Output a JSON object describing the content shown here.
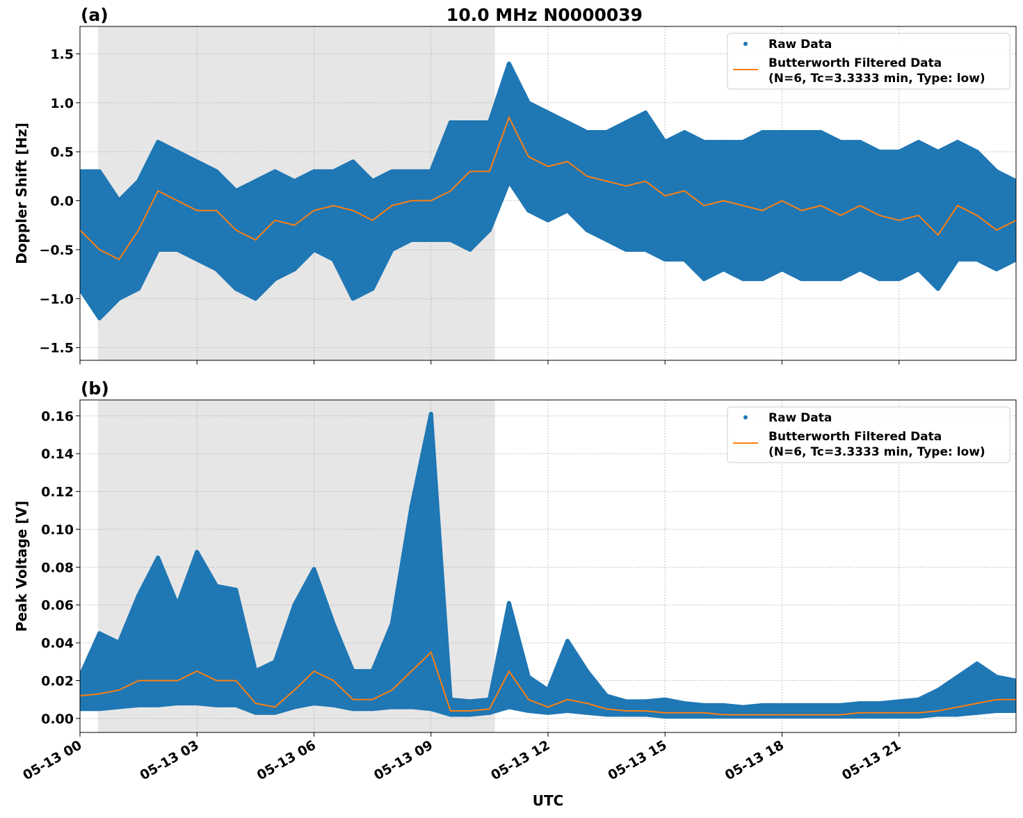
{
  "title": "10.0 MHz N0000039",
  "colors": {
    "raw": "#1f77b4",
    "filtered": "#ff7f0e",
    "shade": "#e6e6e6",
    "grid": "#b0b0b0"
  },
  "chart_data": [
    {
      "type": "scatter",
      "panel_label": "(a)",
      "title": "10.0 MHz N0000039",
      "xlabel": "",
      "ylabel": "Doppler Shift [Hz]",
      "x_unit": "hours UTC on 05-13",
      "xlim": [
        0,
        24
      ],
      "ylim": [
        -1.63,
        1.78
      ],
      "xticks": [
        0,
        3,
        6,
        9,
        12,
        15,
        18,
        21
      ],
      "xtick_labels": [
        "05-13 00",
        "05-13 03",
        "05-13 06",
        "05-13 09",
        "05-13 12",
        "05-13 15",
        "05-13 18",
        "05-13 21"
      ],
      "yticks": [
        -1.5,
        -1.0,
        -0.5,
        0.0,
        0.5,
        1.0,
        1.5
      ],
      "ytick_labels": [
        "−1.5",
        "−1.0",
        "−0.5",
        "0.0",
        "0.5",
        "1.0",
        "1.5"
      ],
      "grid": true,
      "shaded_span": [
        0.46,
        10.64
      ],
      "legend": {
        "placement": "top-right",
        "entries": [
          "Raw Data",
          "Butterworth Filtered Data",
          "(N=6, Tc=3.3333 min, Type: low)"
        ]
      },
      "x": [
        0,
        0.5,
        1,
        1.5,
        2,
        2.5,
        3,
        3.5,
        4,
        4.5,
        5,
        5.5,
        6,
        6.5,
        7,
        7.5,
        8,
        8.5,
        9,
        9.5,
        10,
        10.5,
        11,
        11.5,
        12,
        12.5,
        13,
        13.5,
        14,
        14.5,
        15,
        15.5,
        16,
        16.5,
        17,
        17.5,
        18,
        18.5,
        19,
        19.5,
        20,
        20.5,
        21,
        21.5,
        22,
        22.5,
        23,
        23.5,
        24
      ],
      "series": [
        {
          "name": "Butterworth Filtered Data",
          "kind": "line",
          "values": [
            -0.3,
            -0.5,
            -0.6,
            -0.3,
            0.1,
            0.0,
            -0.1,
            -0.1,
            -0.3,
            -0.4,
            -0.2,
            -0.25,
            -0.1,
            -0.05,
            -0.1,
            -0.2,
            -0.05,
            0.0,
            0.0,
            0.1,
            0.3,
            0.3,
            0.85,
            0.45,
            0.35,
            0.4,
            0.25,
            0.2,
            0.15,
            0.2,
            0.05,
            0.1,
            -0.05,
            0.0,
            -0.05,
            -0.1,
            0.0,
            -0.1,
            -0.05,
            -0.15,
            -0.05,
            -0.15,
            -0.2,
            -0.15,
            -0.35,
            -0.05,
            -0.15,
            -0.3,
            -0.2
          ]
        },
        {
          "name": "Raw Data",
          "kind": "scatter-envelope",
          "lower": [
            -0.9,
            -1.2,
            -1.0,
            -0.9,
            -0.5,
            -0.5,
            -0.6,
            -0.7,
            -0.9,
            -1.0,
            -0.8,
            -0.7,
            -0.5,
            -0.6,
            -1.0,
            -0.9,
            -0.5,
            -0.4,
            -0.4,
            -0.4,
            -0.5,
            -0.3,
            0.2,
            -0.1,
            -0.2,
            -0.1,
            -0.3,
            -0.4,
            -0.5,
            -0.5,
            -0.6,
            -0.6,
            -0.8,
            -0.7,
            -0.8,
            -0.8,
            -0.7,
            -0.8,
            -0.8,
            -0.8,
            -0.7,
            -0.8,
            -0.8,
            -0.7,
            -0.9,
            -0.6,
            -0.6,
            -0.7,
            -0.6
          ],
          "upper": [
            0.3,
            0.3,
            0.0,
            0.2,
            0.6,
            0.5,
            0.4,
            0.3,
            0.1,
            0.2,
            0.3,
            0.2,
            0.3,
            0.3,
            0.4,
            0.2,
            0.3,
            0.3,
            0.3,
            0.8,
            0.8,
            0.8,
            1.4,
            1.0,
            0.9,
            0.8,
            0.7,
            0.7,
            0.8,
            0.9,
            0.6,
            0.7,
            0.6,
            0.6,
            0.6,
            0.7,
            0.7,
            0.7,
            0.7,
            0.6,
            0.6,
            0.5,
            0.5,
            0.6,
            0.5,
            0.6,
            0.5,
            0.3,
            0.2
          ]
        }
      ]
    },
    {
      "type": "scatter",
      "panel_label": "(b)",
      "xlabel": "UTC",
      "ylabel": "Peak Voltage [V]",
      "x_unit": "hours UTC on 05-13",
      "xlim": [
        0,
        24
      ],
      "ylim": [
        -0.0074,
        0.1684
      ],
      "xticks": [
        0,
        3,
        6,
        9,
        12,
        15,
        18,
        21
      ],
      "xtick_labels": [
        "05-13 00",
        "05-13 03",
        "05-13 06",
        "05-13 09",
        "05-13 12",
        "05-13 15",
        "05-13 18",
        "05-13 21"
      ],
      "yticks": [
        0.0,
        0.02,
        0.04,
        0.06,
        0.08,
        0.1,
        0.12,
        0.14,
        0.16
      ],
      "ytick_labels": [
        "0.00",
        "0.02",
        "0.04",
        "0.06",
        "0.08",
        "0.10",
        "0.12",
        "0.14",
        "0.16"
      ],
      "grid": true,
      "shaded_span": [
        0.46,
        10.64
      ],
      "legend": {
        "placement": "top-right",
        "entries": [
          "Raw Data",
          "Butterworth Filtered Data",
          "(N=6, Tc=3.3333 min, Type: low)"
        ]
      },
      "x": [
        0,
        0.5,
        1,
        1.5,
        2,
        2.5,
        3,
        3.5,
        4,
        4.5,
        5,
        5.5,
        6,
        6.5,
        7,
        7.5,
        8,
        8.5,
        9,
        9.5,
        10,
        10.5,
        11,
        11.5,
        12,
        12.5,
        13,
        13.5,
        14,
        14.5,
        15,
        15.5,
        16,
        16.5,
        17,
        17.5,
        18,
        18.5,
        19,
        19.5,
        20,
        20.5,
        21,
        21.5,
        22,
        22.5,
        23,
        23.5,
        24
      ],
      "series": [
        {
          "name": "Butterworth Filtered Data",
          "kind": "line",
          "values": [
            0.012,
            0.013,
            0.015,
            0.02,
            0.02,
            0.02,
            0.025,
            0.02,
            0.02,
            0.008,
            0.006,
            0.015,
            0.025,
            0.02,
            0.01,
            0.01,
            0.015,
            0.025,
            0.035,
            0.004,
            0.004,
            0.005,
            0.025,
            0.01,
            0.006,
            0.01,
            0.008,
            0.005,
            0.004,
            0.004,
            0.003,
            0.003,
            0.003,
            0.002,
            0.002,
            0.002,
            0.002,
            0.002,
            0.002,
            0.002,
            0.003,
            0.003,
            0.003,
            0.003,
            0.004,
            0.006,
            0.008,
            0.01,
            0.01
          ]
        },
        {
          "name": "Raw Data",
          "kind": "scatter-envelope",
          "lower": [
            0.005,
            0.005,
            0.006,
            0.007,
            0.007,
            0.008,
            0.008,
            0.007,
            0.007,
            0.003,
            0.003,
            0.006,
            0.008,
            0.007,
            0.005,
            0.005,
            0.006,
            0.006,
            0.005,
            0.002,
            0.002,
            0.003,
            0.006,
            0.004,
            0.003,
            0.004,
            0.003,
            0.002,
            0.002,
            0.002,
            0.001,
            0.001,
            0.001,
            0.001,
            0.001,
            0.001,
            0.001,
            0.001,
            0.001,
            0.001,
            0.001,
            0.001,
            0.001,
            0.001,
            0.002,
            0.002,
            0.003,
            0.004,
            0.004
          ],
          "upper": [
            0.022,
            0.045,
            0.04,
            0.065,
            0.085,
            0.06,
            0.088,
            0.07,
            0.068,
            0.025,
            0.03,
            0.06,
            0.079,
            0.05,
            0.025,
            0.025,
            0.05,
            0.112,
            0.161,
            0.01,
            0.009,
            0.01,
            0.061,
            0.022,
            0.015,
            0.041,
            0.025,
            0.012,
            0.009,
            0.009,
            0.01,
            0.008,
            0.007,
            0.007,
            0.006,
            0.007,
            0.007,
            0.007,
            0.007,
            0.007,
            0.008,
            0.008,
            0.009,
            0.01,
            0.015,
            0.022,
            0.029,
            0.022,
            0.02
          ]
        }
      ]
    }
  ]
}
